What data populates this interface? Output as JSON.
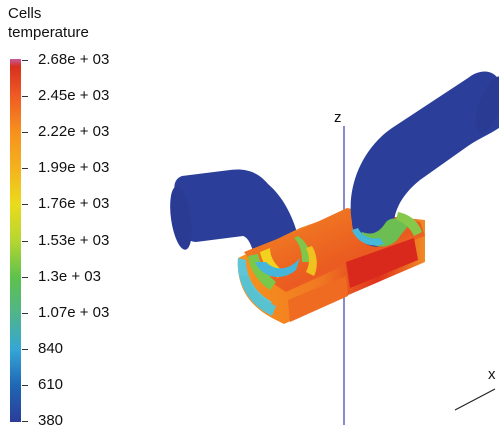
{
  "legend": {
    "title_line1": "Cells",
    "title_line2": "temperature",
    "ticks": [
      "2.68e + 03",
      "2.45e + 03",
      "2.22e + 03",
      "1.99e + 03",
      "1.76e + 03",
      "1.53e + 03",
      "1.3e + 03",
      "1.07e + 03",
      "840",
      "610",
      "380"
    ],
    "colormap": [
      "#c85aa0",
      "#d7301f",
      "#ee5a23",
      "#f7901e",
      "#f4b21e",
      "#eadb1c",
      "#b6d631",
      "#5ec24b",
      "#4fb589",
      "#35a6d6",
      "#1f66b5",
      "#2a3d99"
    ]
  },
  "axes": {
    "z_label": "z",
    "x_label": "x"
  },
  "colors": {
    "cold": "#2b3f9a",
    "hot": "#e03c1e",
    "warm": "#f28c28",
    "background": "#ffffff"
  }
}
